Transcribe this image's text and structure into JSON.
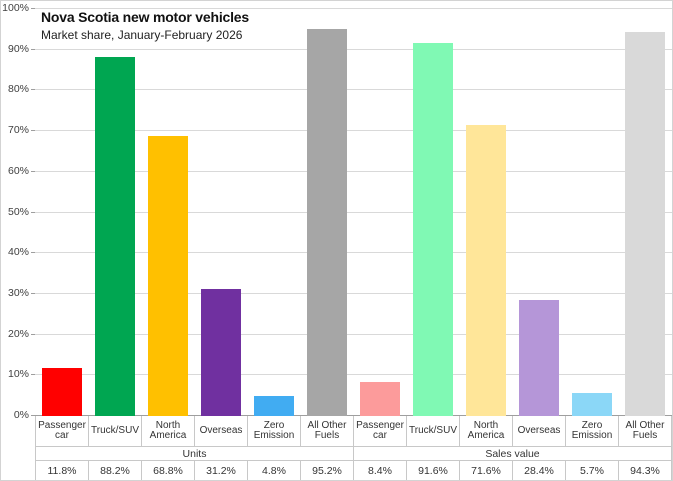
{
  "title": "Nova Scotia new motor vehicles",
  "subtitle": "Market share, January-February 2026",
  "chart_data": {
    "type": "bar",
    "title": "Nova Scotia new motor vehicles",
    "subtitle": "Market share, January-February 2026",
    "ylabel": "",
    "xlabel": "",
    "ylim": [
      0,
      100
    ],
    "yticks": [
      0,
      10,
      20,
      30,
      40,
      50,
      60,
      70,
      80,
      90,
      100
    ],
    "ytick_suffix": "%",
    "grid": true,
    "legend": "none",
    "groups": [
      {
        "label": "Units",
        "categories": [
          "Passenger car",
          "Truck/SUV",
          "North America",
          "Overseas",
          "Zero Emission",
          "All Other Fuels"
        ],
        "values": [
          11.8,
          88.2,
          68.8,
          31.2,
          4.8,
          95.2
        ],
        "value_labels": [
          "11.8%",
          "88.2%",
          "68.8%",
          "31.2%",
          "4.8%",
          "95.2%"
        ],
        "colors": [
          "#FF0000",
          "#00A651",
          "#FFC000",
          "#7030A0",
          "#41ACF2",
          "#A6A6A6"
        ]
      },
      {
        "label": "Sales value",
        "categories": [
          "Passenger car",
          "Truck/SUV",
          "North America",
          "Overseas",
          "Zero Emission",
          "All Other Fuels"
        ],
        "values": [
          8.4,
          91.6,
          71.6,
          28.4,
          5.7,
          94.3
        ],
        "value_labels": [
          "8.4%",
          "91.6%",
          "71.6%",
          "28.4%",
          "5.7%",
          "94.3%"
        ],
        "colors": [
          "#FC9B9B",
          "#80F9B4",
          "#FFE699",
          "#B596D8",
          "#8BD7F7",
          "#D9D9D9"
        ]
      }
    ]
  },
  "colors": {
    "gridline": "#d9d9d9",
    "axis_line": "#9e9e9e",
    "table_border": "#c8c8c8"
  }
}
